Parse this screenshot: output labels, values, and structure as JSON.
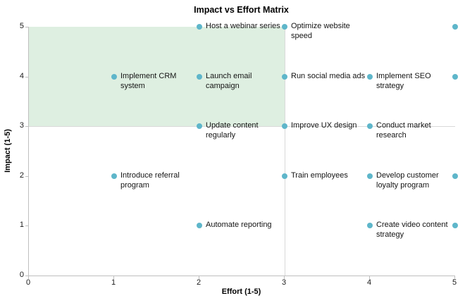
{
  "chart_data": {
    "type": "scatter",
    "title": "Impact vs Effort Matrix",
    "xlabel": "Effort (1-5)",
    "ylabel": "Impact (1-5)",
    "xlim": [
      0,
      5
    ],
    "ylim": [
      0,
      5
    ],
    "x_ticks": [
      "0",
      "1",
      "2",
      "3",
      "4",
      "5"
    ],
    "y_ticks": [
      "0",
      "1",
      "2",
      "3",
      "4",
      "5"
    ],
    "grid": false,
    "legend": false,
    "marker_color": "#5EB6CA",
    "axis_color": "#BFBFBF",
    "highlight_region": {
      "x": [
        0,
        3
      ],
      "y": [
        3,
        5
      ],
      "color": "#DEEFE1"
    },
    "divider_lines": {
      "x": 3,
      "y": 3,
      "color": "#D9D9D9"
    },
    "points": [
      {
        "x": 2,
        "y": 5,
        "label": "Host a webinar series",
        "label_lines": [
          "Host a webinar series"
        ]
      },
      {
        "x": 3,
        "y": 5,
        "label": "Optimize website speed",
        "label_lines": [
          "Optimize website",
          "speed"
        ]
      },
      {
        "x": 5,
        "y": 5,
        "label": "",
        "label_lines": []
      },
      {
        "x": 1,
        "y": 4,
        "label": "Implement CRM system",
        "label_lines": [
          "Implement CRM",
          "system"
        ]
      },
      {
        "x": 2,
        "y": 4,
        "label": "Launch email campaign",
        "label_lines": [
          "Launch email",
          "campaign"
        ]
      },
      {
        "x": 3,
        "y": 4,
        "label": "Run social media ads",
        "label_lines": [
          "Run social media ads"
        ]
      },
      {
        "x": 4,
        "y": 4,
        "label": "Implement SEO strategy",
        "label_lines": [
          "Implement SEO",
          "strategy"
        ]
      },
      {
        "x": 5,
        "y": 4,
        "label": "",
        "label_lines": []
      },
      {
        "x": 2,
        "y": 3,
        "label": "Update content regularly",
        "label_lines": [
          "Update content",
          "regularly"
        ]
      },
      {
        "x": 3,
        "y": 3,
        "label": "Improve UX design",
        "label_lines": [
          "Improve UX design"
        ]
      },
      {
        "x": 4,
        "y": 3,
        "label": "Conduct market research",
        "label_lines": [
          "Conduct market",
          "research"
        ]
      },
      {
        "x": 1,
        "y": 2,
        "label": "Introduce referral program",
        "label_lines": [
          "Introduce referral",
          "program"
        ]
      },
      {
        "x": 3,
        "y": 2,
        "label": "Train employees",
        "label_lines": [
          "Train employees"
        ]
      },
      {
        "x": 4,
        "y": 2,
        "label": "Develop customer loyalty program",
        "label_lines": [
          "Develop customer",
          "loyalty program"
        ]
      },
      {
        "x": 5,
        "y": 2,
        "label": "",
        "label_lines": []
      },
      {
        "x": 2,
        "y": 1,
        "label": "Automate reporting",
        "label_lines": [
          "Automate reporting"
        ]
      },
      {
        "x": 4,
        "y": 1,
        "label": "Create video content strategy",
        "label_lines": [
          "Create video content",
          "strategy"
        ]
      },
      {
        "x": 5,
        "y": 1,
        "label": "",
        "label_lines": []
      }
    ]
  }
}
